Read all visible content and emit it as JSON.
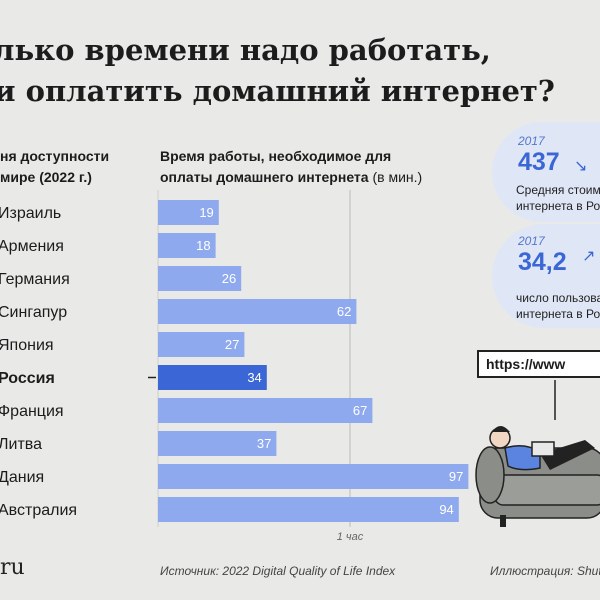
{
  "title": {
    "line1": "лько времени надо работать,",
    "line2": "и оплатить домашний интернет?"
  },
  "headers": {
    "left_line1": "ня доступности",
    "left_line2": "мире (2022 г.)",
    "right_line1": "Время работы, необходимое для",
    "right_line2": "оплаты домашнего интернета",
    "right_unit": "(в мин.)"
  },
  "chart_data": {
    "type": "bar",
    "orientation": "horizontal",
    "categories": [
      "Израиль",
      "Армения",
      "Германия",
      "Сингапур",
      "Япония",
      "Россия",
      "Франция",
      "Литва",
      "Дания",
      "Австралия"
    ],
    "values": [
      19,
      18,
      26,
      62,
      27,
      34,
      67,
      37,
      97,
      94
    ],
    "highlight": "Россия",
    "reference_line": {
      "value": 60,
      "label": "1 час"
    },
    "xlim": [
      0,
      100
    ],
    "colors": {
      "bar": "#8ea9ee",
      "highlight": "#3a66d6",
      "line": "#bbbbbb"
    }
  },
  "source": "Источник: 2022 Digital Quality of Life Index",
  "credit": "Иллюстрация: Shutt",
  "logo": "ru",
  "stats": [
    {
      "year": "2017",
      "value": "437",
      "desc_line1": "Средняя стоим",
      "desc_line2": "интернета в Ро"
    },
    {
      "year": "2017",
      "value": "34,2",
      "desc_line1": "число пользова",
      "desc_line2": "интернета в Ро"
    }
  ],
  "illustration": {
    "url_text": "https://www"
  }
}
